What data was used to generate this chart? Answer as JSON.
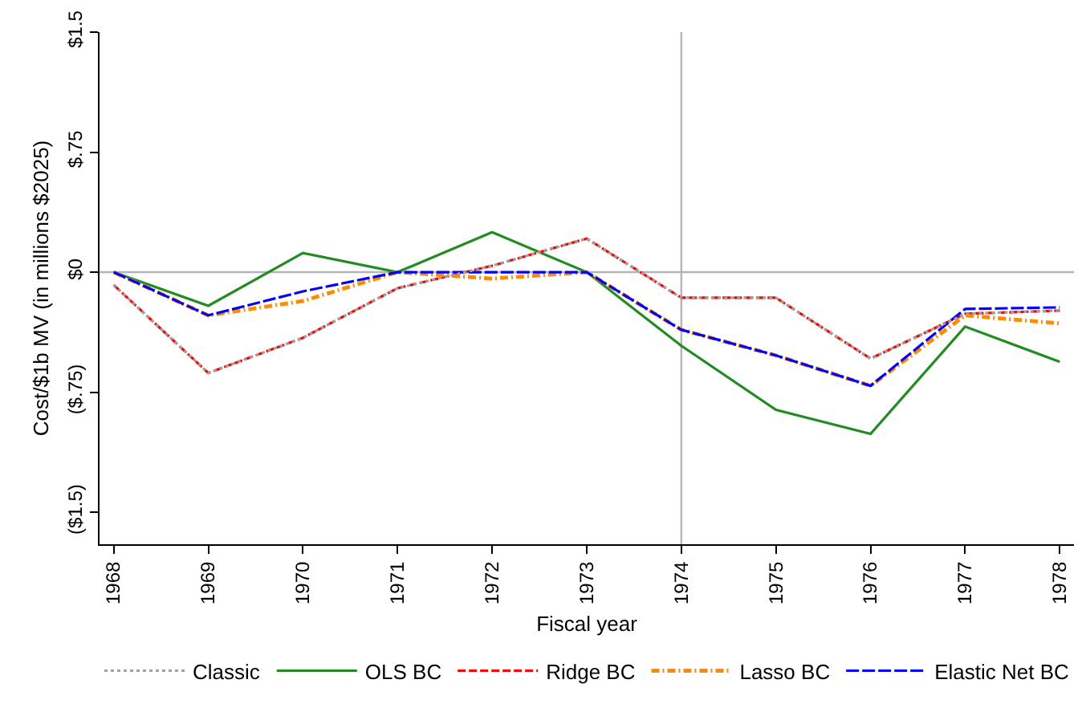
{
  "chart_data": {
    "type": "line",
    "xlabel": "Fiscal year",
    "ylabel": "Cost/$1b MV (in millions $2025)",
    "x": [
      1968,
      1969,
      1970,
      1971,
      1972,
      1973,
      1974,
      1975,
      1976,
      1977,
      1978
    ],
    "series": [
      {
        "name": "Classic",
        "color": "#a0a0a0",
        "line_style": "dotted",
        "values": [
          -0.08,
          -0.63,
          -0.41,
          -0.1,
          0.04,
          0.21,
          -0.16,
          -0.16,
          -0.54,
          -0.26,
          -0.24
        ]
      },
      {
        "name": "OLS BC",
        "color": "#228b22",
        "line_style": "solid",
        "values": [
          0,
          -0.21,
          0.12,
          0,
          0.25,
          0,
          -0.46,
          -0.86,
          -1.01,
          -0.34,
          -0.56
        ]
      },
      {
        "name": "Ridge BC",
        "color": "#ff0000",
        "line_style": "dashed",
        "values": [
          -0.08,
          -0.63,
          -0.41,
          -0.1,
          0.04,
          0.21,
          -0.16,
          -0.16,
          -0.54,
          -0.26,
          -0.24
        ]
      },
      {
        "name": "Lasso BC",
        "color": "#ff8c00",
        "line_style": "dashdot",
        "values": [
          0,
          -0.27,
          -0.18,
          0,
          -0.04,
          0,
          -0.36,
          -0.52,
          -0.71,
          -0.27,
          -0.32
        ]
      },
      {
        "name": "Elastic Net BC",
        "color": "#0000ff",
        "line_style": "longdash",
        "values": [
          0,
          -0.27,
          -0.12,
          0,
          0,
          0,
          -0.36,
          -0.52,
          -0.71,
          -0.23,
          -0.22
        ]
      }
    ],
    "xlim": [
      1967.85,
      1978.15
    ],
    "xticks": [
      1968,
      1969,
      1970,
      1971,
      1972,
      1973,
      1974,
      1975,
      1976,
      1977,
      1978
    ],
    "ylim": [
      -1.7,
      1.5
    ],
    "yticks": [
      {
        "value": 1.5,
        "label": "$1.5"
      },
      {
        "value": 0.75,
        "label": "$.75"
      },
      {
        "value": 0,
        "label": "$0"
      },
      {
        "value": -0.75,
        "label": "($.75)"
      },
      {
        "value": -1.5,
        "label": "($1.5)"
      }
    ],
    "ref_lines": [
      {
        "axis": "y",
        "value": 0,
        "color": "#b4b4b4"
      },
      {
        "axis": "x",
        "value": 1974,
        "color": "#b4b4b4"
      }
    ],
    "grid": false,
    "legend": "bottom",
    "marker": "none"
  }
}
